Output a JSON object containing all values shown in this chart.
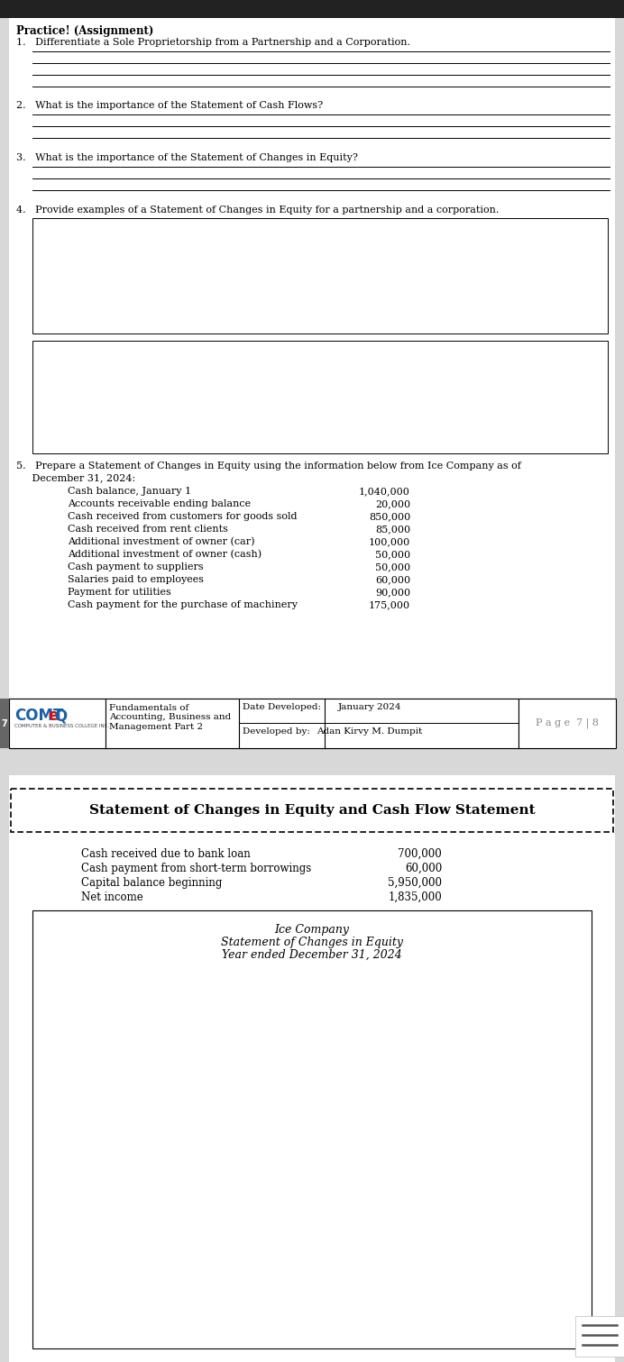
{
  "title_bold": "Practice! (Assignment)",
  "q1": "1.   Differentiate a Sole Proprietorship from a Partnership and a Corporation.",
  "q2": "2.   What is the importance of the Statement of Cash Flows?",
  "q3": "3.   What is the importance of the Statement of Changes in Equity?",
  "q4": "4.   Provide examples of a Statement of Changes in Equity for a partnership and a corporation.",
  "q5_line1": "5.   Prepare a Statement of Changes in Equity using the information below from Ice Company as of",
  "q5_line2": "     December 31, 2024:",
  "data_items": [
    [
      "Cash balance, January 1",
      "1,040,000"
    ],
    [
      "Accounts receivable ending balance",
      "20,000"
    ],
    [
      "Cash received from customers for goods sold",
      "850,000"
    ],
    [
      "Cash received from rent clients",
      "85,000"
    ],
    [
      "Additional investment of owner (car)",
      "100,000"
    ],
    [
      "Additional investment of owner (cash)",
      "50,000"
    ],
    [
      "Cash payment to suppliers",
      "50,000"
    ],
    [
      "Salaries paid to employees",
      "60,000"
    ],
    [
      "Payment for utilities",
      "90,000"
    ],
    [
      "Cash payment for the purchase of machinery",
      "175,000"
    ]
  ],
  "footer_subject": "Fundamentals of\nAccounting, Business and\nManagement Part 2",
  "footer_date_label": "Date Developed:",
  "footer_date_val": "January 2024",
  "footer_dev_label": "Developed by:",
  "footer_dev_val": "Adan Kirvy M. Dumpit",
  "footer_page": "P a g e  7 | 8",
  "page2_title": "Statement of Changes in Equity and Cash Flow Statement",
  "page2_items": [
    [
      "Cash received due to bank loan",
      "700,000"
    ],
    [
      "Cash payment from short-term borrowings",
      "60,000"
    ],
    [
      "Capital balance beginning",
      "5,950,000"
    ],
    [
      "Net income",
      "1,835,000"
    ]
  ],
  "ice_line1": "Ice Company",
  "ice_line2": "Statement of Changes in Equity",
  "ice_line3": "Year ended December 31, 2024",
  "gray_bg": "#d8d8d8",
  "white": "#ffffff",
  "black": "#000000",
  "dark_bar": "#222222",
  "logo_blue": "#1a5fa8",
  "logo_red": "#cc1111",
  "footer_gray": "#888888",
  "tab_gray": "#666666"
}
